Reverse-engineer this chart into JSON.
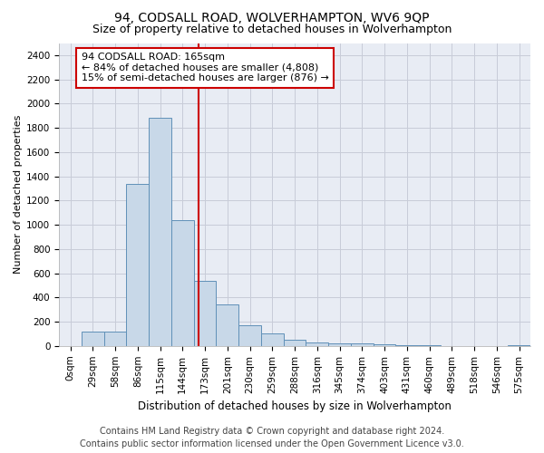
{
  "title": "94, CODSALL ROAD, WOLVERHAMPTON, WV6 9QP",
  "subtitle": "Size of property relative to detached houses in Wolverhampton",
  "xlabel": "Distribution of detached houses by size in Wolverhampton",
  "ylabel": "Number of detached properties",
  "footer_line1": "Contains HM Land Registry data © Crown copyright and database right 2024.",
  "footer_line2": "Contains public sector information licensed under the Open Government Licence v3.0.",
  "categories": [
    "0sqm",
    "29sqm",
    "58sqm",
    "86sqm",
    "115sqm",
    "144sqm",
    "173sqm",
    "201sqm",
    "230sqm",
    "259sqm",
    "288sqm",
    "316sqm",
    "345sqm",
    "374sqm",
    "403sqm",
    "431sqm",
    "460sqm",
    "489sqm",
    "518sqm",
    "546sqm",
    "575sqm"
  ],
  "values": [
    2,
    120,
    120,
    1340,
    1880,
    1040,
    540,
    340,
    170,
    105,
    50,
    30,
    22,
    20,
    15,
    5,
    3,
    1,
    1,
    1,
    5
  ],
  "bar_color": "#c8d8e8",
  "bar_edge_color": "#6090b8",
  "bar_edge_width": 0.7,
  "property_line_x": 5.73,
  "property_line_color": "#cc0000",
  "annotation_line1": "94 CODSALL ROAD: 165sqm",
  "annotation_line2": "← 84% of detached houses are smaller (4,808)",
  "annotation_line3": "15% of semi-detached houses are larger (876) →",
  "annotation_box_color": "#ffffff",
  "annotation_box_edge": "#cc0000",
  "ylim": [
    0,
    2500
  ],
  "yticks": [
    0,
    200,
    400,
    600,
    800,
    1000,
    1200,
    1400,
    1600,
    1800,
    2000,
    2200,
    2400
  ],
  "grid_color": "#c8ccd8",
  "background_color": "#e8ecf4",
  "title_fontsize": 10,
  "subtitle_fontsize": 9,
  "xlabel_fontsize": 8.5,
  "ylabel_fontsize": 8,
  "tick_fontsize": 7.5,
  "annotation_fontsize": 8,
  "footer_fontsize": 7
}
